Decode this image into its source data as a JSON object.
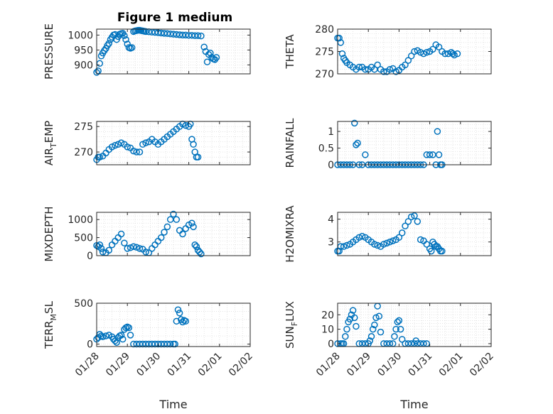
{
  "title": "Figure 1 medium",
  "xlabel": "Time",
  "x_tick_labels": [
    "01/28",
    "01/29",
    "01/30",
    "01/31",
    "02/01",
    "02/02"
  ],
  "marker_color": "#0072BD",
  "chart_data": [
    {
      "type": "scatter",
      "ylabel": "PRESSURE",
      "ylim": [
        870,
        1020
      ],
      "yticks": [
        900,
        950,
        1000
      ],
      "grid": true,
      "x": [
        28.0,
        28.05,
        28.1,
        28.15,
        28.2,
        28.25,
        28.3,
        28.35,
        28.4,
        28.45,
        28.5,
        28.55,
        28.6,
        28.65,
        28.7,
        28.75,
        28.8,
        28.85,
        28.9,
        28.95,
        29.0,
        29.05,
        29.1,
        29.15,
        29.2,
        29.25,
        29.3,
        29.35,
        29.4,
        29.45,
        29.5,
        29.55,
        29.6,
        29.7,
        29.8,
        29.9,
        30.0,
        30.1,
        30.2,
        30.3,
        30.4,
        30.5,
        30.6,
        30.7,
        30.8,
        30.9,
        31.0,
        31.1,
        31.2,
        31.3,
        31.4,
        31.5,
        31.55,
        31.6,
        31.65,
        31.7,
        31.75,
        31.8,
        31.85,
        31.9
      ],
      "y": [
        875,
        880,
        905,
        930,
        940,
        948,
        955,
        965,
        972,
        985,
        993,
        1000,
        1002,
        985,
        995,
        1003,
        1005,
        1006,
        998,
        985,
        970,
        958,
        956,
        958,
        1012,
        1014,
        1015,
        1016,
        1016,
        1015,
        1014,
        1013,
        1012,
        1011,
        1010,
        1009,
        1008,
        1007,
        1006,
        1005,
        1004,
        1003,
        1002,
        1001,
        1000,
        1000,
        999,
        999,
        998,
        998,
        997,
        960,
        945,
        910,
        935,
        940,
        925,
        920,
        918,
        925
      ]
    },
    {
      "type": "scatter",
      "ylabel": "THETA",
      "ylim": [
        270,
        280
      ],
      "yticks": [
        270,
        275,
        280
      ],
      "grid": true,
      "x": [
        28.0,
        28.05,
        28.1,
        28.15,
        28.2,
        28.25,
        28.3,
        28.4,
        28.5,
        28.6,
        28.7,
        28.8,
        28.9,
        29.0,
        29.1,
        29.2,
        29.3,
        29.4,
        29.5,
        29.6,
        29.7,
        29.8,
        29.9,
        30.0,
        30.1,
        30.2,
        30.3,
        30.4,
        30.5,
        30.6,
        30.7,
        30.8,
        30.9,
        31.0,
        31.1,
        31.2,
        31.3,
        31.4,
        31.5,
        31.6,
        31.7,
        31.75,
        31.8,
        31.9
      ],
      "y": [
        278,
        278,
        277,
        274.5,
        273.5,
        273,
        272.5,
        272,
        271.5,
        271,
        271.5,
        271.5,
        271,
        271,
        271.5,
        271,
        272,
        271,
        270.5,
        270.5,
        271,
        271.2,
        270.5,
        270.8,
        271.5,
        272,
        273,
        274,
        275,
        275.2,
        274.8,
        274.5,
        274.8,
        275,
        275.5,
        276.5,
        276,
        275,
        274.5,
        274.5,
        274.8,
        274.5,
        274.2,
        274.5
      ]
    },
    {
      "type": "scatter",
      "ylabel": "AIR_TEMP",
      "ylim": [
        267.5,
        276
      ],
      "yticks": [
        270,
        275
      ],
      "grid": true,
      "x": [
        28.0,
        28.05,
        28.1,
        28.2,
        28.3,
        28.4,
        28.5,
        28.6,
        28.7,
        28.8,
        28.9,
        29.0,
        29.1,
        29.2,
        29.3,
        29.4,
        29.5,
        29.6,
        29.7,
        29.8,
        29.9,
        30.0,
        30.1,
        30.2,
        30.3,
        30.4,
        30.5,
        30.6,
        30.7,
        30.8,
        30.9,
        31.0,
        31.05,
        31.1,
        31.15,
        31.2,
        31.25,
        31.3
      ],
      "y": [
        268.5,
        269,
        269,
        269.2,
        269.8,
        270.5,
        271,
        271.3,
        271.5,
        271.8,
        271.5,
        271,
        270.8,
        270.2,
        270,
        270,
        271.5,
        271.8,
        272,
        272.5,
        272,
        271.5,
        272,
        272.5,
        273,
        273.5,
        274,
        274.5,
        275,
        275.5,
        275.2,
        275,
        275.5,
        272.5,
        271.5,
        270,
        269,
        269
      ]
    },
    {
      "type": "scatter",
      "ylabel": "RAINFALL",
      "ylim": [
        0,
        1.3
      ],
      "yticks": [
        0,
        0.5,
        1
      ],
      "grid": true,
      "x": [
        28.0,
        28.1,
        28.2,
        28.3,
        28.4,
        28.5,
        28.55,
        28.6,
        28.65,
        28.7,
        28.8,
        28.9,
        29.0,
        29.1,
        29.2,
        29.3,
        29.4,
        29.5,
        29.6,
        29.7,
        29.8,
        29.9,
        30.0,
        30.1,
        30.2,
        30.3,
        30.4,
        30.5,
        30.6,
        30.7,
        30.8,
        30.9,
        31.0,
        31.1,
        31.2,
        31.25,
        31.3,
        31.35,
        31.4
      ],
      "y": [
        0,
        0,
        0,
        0,
        0,
        0,
        1.25,
        0.6,
        0.65,
        0,
        0,
        0.3,
        0,
        0,
        0,
        0,
        0,
        0,
        0,
        0,
        0,
        0,
        0,
        0,
        0,
        0,
        0,
        0,
        0,
        0,
        0,
        0.3,
        0.3,
        0.3,
        0,
        1.0,
        0.3,
        0,
        0
      ]
    },
    {
      "type": "scatter",
      "ylabel": "MIXDEPTH",
      "ylim": [
        0,
        1200
      ],
      "yticks": [
        0,
        500,
        1000
      ],
      "grid": true,
      "x": [
        28.0,
        28.05,
        28.1,
        28.15,
        28.2,
        28.3,
        28.4,
        28.5,
        28.6,
        28.7,
        28.8,
        28.9,
        29.0,
        29.1,
        29.2,
        29.3,
        29.4,
        29.5,
        29.6,
        29.7,
        29.8,
        29.9,
        30.0,
        30.1,
        30.2,
        30.3,
        30.4,
        30.5,
        30.6,
        30.7,
        30.8,
        30.9,
        31.0,
        31.1,
        31.15,
        31.2,
        31.25,
        31.3,
        31.35,
        31.4
      ],
      "y": [
        280,
        250,
        300,
        200,
        100,
        80,
        150,
        300,
        400,
        500,
        600,
        350,
        200,
        220,
        250,
        230,
        200,
        180,
        100,
        80,
        200,
        300,
        400,
        500,
        650,
        800,
        1000,
        1150,
        1000,
        700,
        600,
        750,
        850,
        900,
        800,
        300,
        250,
        150,
        100,
        50
      ]
    },
    {
      "type": "scatter",
      "ylabel": "H2OMIXRA",
      "ylim": [
        2.4,
        4.3
      ],
      "yticks": [
        3,
        4
      ],
      "grid": true,
      "x": [
        28.0,
        28.05,
        28.1,
        28.2,
        28.3,
        28.4,
        28.5,
        28.6,
        28.7,
        28.8,
        28.9,
        29.0,
        29.1,
        29.2,
        29.3,
        29.4,
        29.5,
        29.6,
        29.7,
        29.8,
        29.9,
        30.0,
        30.1,
        30.2,
        30.3,
        30.4,
        30.5,
        30.6,
        30.7,
        30.8,
        30.9,
        31.0,
        31.05,
        31.1,
        31.15,
        31.2,
        31.25,
        31.3,
        31.35,
        31.4
      ],
      "y": [
        2.6,
        2.6,
        2.8,
        2.8,
        2.85,
        2.9,
        3.0,
        3.1,
        3.2,
        3.25,
        3.2,
        3.1,
        3.0,
        2.9,
        2.85,
        2.8,
        2.9,
        2.95,
        3.0,
        3.05,
        3.1,
        3.2,
        3.4,
        3.7,
        3.9,
        4.1,
        4.15,
        3.9,
        3.1,
        3.05,
        2.9,
        2.7,
        2.6,
        3.0,
        2.9,
        2.8,
        2.8,
        2.7,
        2.6,
        2.6
      ]
    },
    {
      "type": "scatter",
      "ylabel": "TERR_MSL",
      "ylim": [
        -30,
        500
      ],
      "yticks": [
        0,
        500
      ],
      "grid": true,
      "x": [
        28.0,
        28.05,
        28.1,
        28.15,
        28.2,
        28.3,
        28.4,
        28.5,
        28.55,
        28.6,
        28.65,
        28.7,
        28.75,
        28.8,
        28.85,
        28.9,
        28.95,
        29.0,
        29.05,
        29.1,
        29.2,
        29.3,
        29.4,
        29.5,
        29.6,
        29.7,
        29.8,
        29.9,
        30.0,
        30.1,
        30.2,
        30.3,
        30.4,
        30.5,
        30.55,
        30.6,
        30.65,
        30.7,
        30.75,
        30.8,
        30.85,
        30.9
      ],
      "y": [
        60,
        80,
        120,
        100,
        90,
        100,
        110,
        90,
        60,
        40,
        20,
        80,
        100,
        110,
        60,
        180,
        200,
        210,
        200,
        110,
        0,
        0,
        0,
        0,
        0,
        0,
        0,
        0,
        0,
        0,
        0,
        0,
        0,
        0,
        0,
        280,
        420,
        380,
        300,
        270,
        290,
        280
      ]
    },
    {
      "type": "scatter",
      "ylabel": "SUN_FLUX",
      "ylim": [
        -2,
        28
      ],
      "yticks": [
        0,
        10,
        20
      ],
      "grid": true,
      "x": [
        28.0,
        28.1,
        28.15,
        28.2,
        28.25,
        28.3,
        28.35,
        28.4,
        28.45,
        28.5,
        28.55,
        28.6,
        28.7,
        28.8,
        28.9,
        29.0,
        29.05,
        29.1,
        29.15,
        29.2,
        29.25,
        29.3,
        29.35,
        29.4,
        29.5,
        29.6,
        29.7,
        29.8,
        29.85,
        29.9,
        29.95,
        30.0,
        30.05,
        30.1,
        30.2,
        30.3,
        30.4,
        30.5,
        30.55,
        30.6,
        30.7,
        30.8,
        30.9
      ],
      "y": [
        0,
        0,
        0,
        0,
        5,
        10,
        15,
        17,
        20,
        23,
        18,
        12,
        0,
        0,
        0,
        0,
        2,
        5,
        10,
        13,
        18,
        26,
        19,
        8,
        0,
        0,
        0,
        0,
        5,
        10,
        15,
        16,
        10,
        3,
        0,
        0,
        0,
        0,
        2,
        0,
        0,
        0,
        0
      ]
    }
  ]
}
